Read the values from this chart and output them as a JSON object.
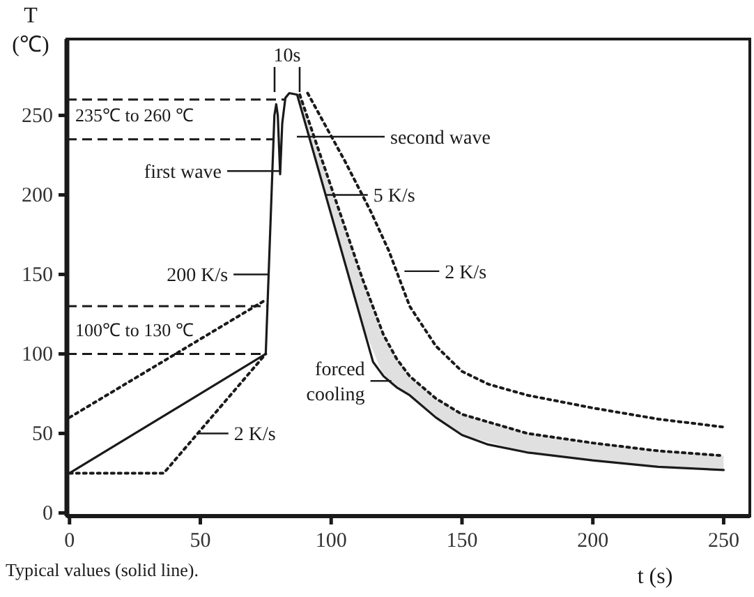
{
  "chart_data": {
    "type": "line",
    "xlabel": "t (s)",
    "ylabel": "T (℃)",
    "xlim": [
      -1,
      260
    ],
    "ylim": [
      -2,
      298
    ],
    "xticks": [
      0,
      50,
      100,
      150,
      200,
      250
    ],
    "yticks": [
      0,
      50,
      100,
      150,
      200,
      250
    ],
    "grid": false,
    "series": [
      {
        "color": "#1a1a1a",
        "line_style": "solid",
        "x": [
          0,
          75,
          78.3,
          79,
          79.6,
          80.5,
          81.3,
          82.5,
          84,
          87,
          116,
          120,
          125,
          130,
          140,
          150,
          160,
          175,
          200,
          225,
          250
        ],
        "values": [
          25,
          100,
          250,
          257,
          250,
          213,
          245,
          261,
          264,
          263,
          95,
          86,
          79,
          74,
          60,
          49,
          43,
          38,
          33,
          29,
          27
        ]
      },
      {
        "color": "#1a1a1a",
        "line_style": "dotted",
        "x": [
          88,
          100,
          112,
          120,
          125,
          130,
          140,
          150,
          175,
          200,
          225,
          250
        ],
        "values": [
          263,
          205,
          147,
          112,
          97,
          86,
          72,
          62,
          50,
          44,
          39,
          36
        ],
        "lower": [
          257,
          188,
          118,
          86,
          79,
          74,
          60,
          49,
          38,
          33,
          29,
          27
        ],
        "upper": [
          263,
          205,
          147,
          112,
          97,
          86,
          72,
          62,
          50,
          44,
          39,
          36
        ]
      },
      {
        "color": "#1a1a1a",
        "line_style": "dotted",
        "x": [
          91,
          105,
          115,
          122,
          130,
          140,
          150,
          160,
          175,
          200,
          225,
          250
        ],
        "values": [
          264,
          222,
          190,
          165,
          130,
          105,
          89,
          81,
          74,
          66,
          59,
          54
        ]
      },
      {
        "color": "#1a1a1a",
        "line_style": "dotted",
        "x": [
          0,
          36,
          75
        ],
        "values": [
          25,
          25,
          100
        ]
      },
      {
        "color": "#1a1a1a",
        "line_style": "dotted",
        "x": [
          0,
          74
        ],
        "values": [
          60,
          133
        ]
      }
    ],
    "ref_lines": [
      {
        "axis": "y",
        "value": 260,
        "line_style": "dashed"
      },
      {
        "axis": "y",
        "value": 235,
        "line_style": "dashed"
      },
      {
        "axis": "y",
        "value": 130,
        "line_style": "dashed"
      },
      {
        "axis": "y",
        "value": 100,
        "line_style": "dashed"
      }
    ],
    "annotations": [
      "10s",
      "235℃ to 260 ℃",
      {
        "text": "first wave",
        "x": 80.5,
        "y": 215
      },
      "second wave",
      {
        "text": "5 K/s",
        "x": 98,
        "y": 200
      },
      {
        "text": "200 K/s",
        "x": 76,
        "y": 150
      },
      {
        "text": "2 K/s",
        "x": 128,
        "y": 152
      },
      "100℃ to 130 ℃",
      {
        "text": "2 K/s",
        "x": 49,
        "y": 50
      },
      {
        "text": "forced cooling",
        "x": 123,
        "y": 83
      },
      "Typical values (solid line)."
    ]
  }
}
